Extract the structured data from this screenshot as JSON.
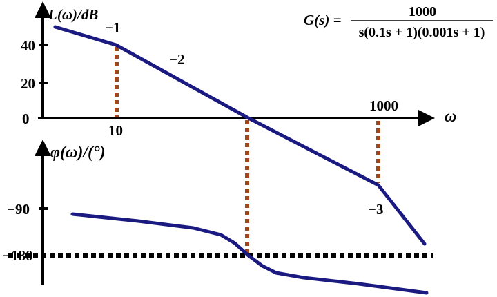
{
  "magnitude": {
    "axis_label": "L(ω)/dB",
    "y_ticks": [
      "40",
      "20",
      "0"
    ],
    "x_ticks": [
      "10",
      "1000"
    ],
    "x_axis_label": "ω",
    "slope_labels": [
      "−1",
      "−2",
      "−3"
    ]
  },
  "phase": {
    "axis_label": "φ(ω)/(°)",
    "y_ticks": [
      "−90",
      "−180"
    ]
  },
  "formula": {
    "lhs": "G(s) =",
    "numerator": "1000",
    "denominator": "s(0.1s + 1)(0.001s + 1)"
  },
  "colors": {
    "curve": "#1a1a80",
    "guide": "#a0461c",
    "axis": "#000000"
  }
}
